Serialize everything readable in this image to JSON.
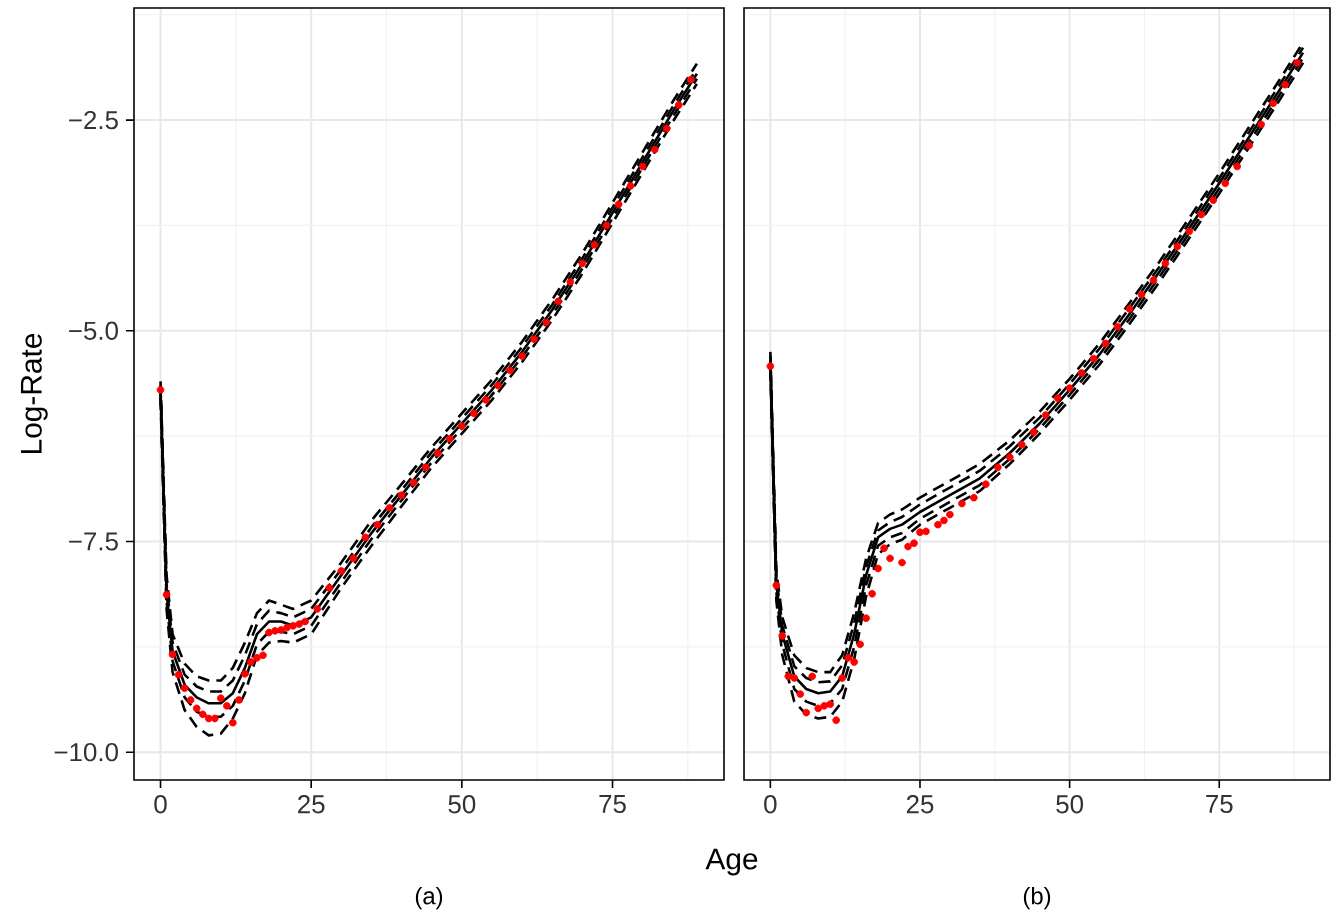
{
  "chart_data": [
    {
      "type": "line",
      "title": "(a)",
      "xlabel": "Age",
      "ylabel": "Log-Rate",
      "xlim": [
        -4.4,
        93.5
      ],
      "ylim": [
        -10.33,
        -1.17
      ],
      "xticks": [
        0,
        25,
        50,
        75
      ],
      "yticks": [
        {
          "value": -10,
          "label": "−10.0"
        },
        {
          "value": -7.5,
          "label": "−7.5"
        },
        {
          "value": -5,
          "label": "−5.0"
        },
        {
          "value": -2.5,
          "label": "−2.5"
        }
      ],
      "grid": true,
      "series": [
        {
          "type": "line",
          "color": "#000000",
          "line_style": "dashed",
          "marker": "none",
          "x": [
            0,
            1,
            2,
            4,
            6,
            8,
            10,
            12,
            14,
            16,
            18,
            20,
            22,
            25,
            30,
            35,
            40,
            45,
            50,
            55,
            60,
            65,
            70,
            75,
            80,
            85,
            89
          ],
          "values": [
            -5.6,
            -7.9,
            -8.6,
            -8.95,
            -9.1,
            -9.15,
            -9.15,
            -9.0,
            -8.7,
            -8.35,
            -8.2,
            -8.25,
            -8.3,
            -8.2,
            -7.75,
            -7.25,
            -6.82,
            -6.38,
            -5.98,
            -5.58,
            -5.13,
            -4.63,
            -4.08,
            -3.48,
            -2.88,
            -2.28,
            -1.83
          ]
        },
        {
          "type": "line",
          "color": "#000000",
          "line_style": "dashed",
          "marker": "none",
          "x": [
            0,
            1,
            2,
            4,
            6,
            8,
            10,
            12,
            14,
            16,
            18,
            20,
            22,
            25,
            30,
            35,
            40,
            45,
            50,
            55,
            60,
            65,
            70,
            75,
            80,
            85,
            89
          ],
          "values": [
            -5.65,
            -8.0,
            -8.7,
            -9.08,
            -9.22,
            -9.28,
            -9.28,
            -9.15,
            -8.85,
            -8.48,
            -8.32,
            -8.35,
            -8.4,
            -8.3,
            -7.83,
            -7.33,
            -6.89,
            -6.44,
            -6.04,
            -5.64,
            -5.19,
            -4.69,
            -4.14,
            -3.54,
            -2.94,
            -2.34,
            -1.89
          ]
        },
        {
          "type": "line",
          "color": "#000000",
          "line_style": "solid",
          "marker": "none",
          "x": [
            0,
            1,
            2,
            4,
            6,
            8,
            10,
            12,
            14,
            16,
            18,
            20,
            22,
            25,
            30,
            35,
            40,
            45,
            50,
            55,
            60,
            65,
            70,
            75,
            80,
            85,
            89
          ],
          "values": [
            -5.7,
            -8.1,
            -8.8,
            -9.2,
            -9.35,
            -9.42,
            -9.42,
            -9.3,
            -9.0,
            -8.6,
            -8.45,
            -8.45,
            -8.5,
            -8.4,
            -7.9,
            -7.4,
            -6.95,
            -6.5,
            -6.1,
            -5.7,
            -5.25,
            -4.75,
            -4.2,
            -3.6,
            -3.0,
            -2.4,
            -1.95
          ]
        },
        {
          "type": "line",
          "color": "#000000",
          "line_style": "dashed",
          "marker": "none",
          "x": [
            0,
            1,
            2,
            4,
            6,
            8,
            10,
            12,
            14,
            16,
            18,
            20,
            22,
            25,
            30,
            35,
            40,
            45,
            50,
            55,
            60,
            65,
            70,
            75,
            80,
            85,
            89
          ],
          "values": [
            -5.75,
            -8.2,
            -8.92,
            -9.35,
            -9.52,
            -9.58,
            -9.58,
            -9.45,
            -9.15,
            -8.72,
            -8.57,
            -8.57,
            -8.6,
            -8.5,
            -7.98,
            -7.47,
            -7.01,
            -6.56,
            -6.16,
            -5.76,
            -5.31,
            -4.81,
            -4.26,
            -3.66,
            -3.06,
            -2.46,
            -2.01
          ]
        },
        {
          "type": "line",
          "color": "#000000",
          "line_style": "dashed",
          "marker": "none",
          "x": [
            0,
            1,
            2,
            4,
            6,
            8,
            10,
            12,
            14,
            16,
            18,
            20,
            22,
            25,
            30,
            35,
            40,
            45,
            50,
            55,
            60,
            65,
            70,
            75,
            80,
            85,
            89
          ],
          "values": [
            -5.8,
            -8.3,
            -9.05,
            -9.5,
            -9.7,
            -9.8,
            -9.78,
            -9.6,
            -9.3,
            -8.85,
            -8.7,
            -8.68,
            -8.7,
            -8.6,
            -8.05,
            -7.55,
            -7.08,
            -6.62,
            -6.22,
            -5.82,
            -5.37,
            -4.87,
            -4.32,
            -3.72,
            -3.12,
            -2.52,
            -2.07
          ]
        },
        {
          "type": "scatter",
          "color": "#ff0000",
          "marker": "circle",
          "x": [
            0,
            1,
            2,
            3,
            4,
            5,
            6,
            7,
            8,
            9,
            10,
            11,
            12,
            13,
            14,
            15,
            16,
            17,
            18,
            19,
            20,
            21,
            22,
            23,
            24,
            26,
            28,
            30,
            32,
            34,
            36,
            38,
            40,
            42,
            44,
            46,
            48,
            50,
            52,
            54,
            56,
            58,
            60,
            62,
            64,
            66,
            68,
            70,
            72,
            74,
            76,
            78,
            80,
            82,
            84,
            86,
            88
          ],
          "values": [
            -5.7,
            -8.13,
            -8.84,
            -9.08,
            -9.24,
            -9.38,
            -9.48,
            -9.55,
            -9.6,
            -9.6,
            -9.36,
            -9.45,
            -9.65,
            -9.38,
            -9.07,
            -8.93,
            -8.88,
            -8.85,
            -8.58,
            -8.56,
            -8.55,
            -8.52,
            -8.5,
            -8.48,
            -8.45,
            -8.3,
            -8.05,
            -7.85,
            -7.7,
            -7.45,
            -7.3,
            -7.1,
            -6.95,
            -6.8,
            -6.62,
            -6.45,
            -6.28,
            -6.13,
            -5.98,
            -5.82,
            -5.65,
            -5.47,
            -5.3,
            -5.1,
            -4.9,
            -4.65,
            -4.42,
            -4.2,
            -3.98,
            -3.75,
            -3.5,
            -3.28,
            -3.05,
            -2.85,
            -2.6,
            -2.32,
            -2.02
          ]
        }
      ]
    },
    {
      "type": "line",
      "title": "(b)",
      "xlim": [
        -4.4,
        93.5
      ],
      "ylim": [
        -10.33,
        -1.17
      ],
      "xticks": [
        0,
        25,
        50,
        75
      ],
      "yticks": [
        -10,
        -7.5,
        -5,
        -2.5
      ],
      "tick_labels": "x",
      "grid": true,
      "series": [
        {
          "type": "line",
          "color": "#000000",
          "line_style": "dashed",
          "marker": "none",
          "x": [
            0,
            1,
            2,
            4,
            6,
            8,
            10,
            12,
            14,
            16,
            18,
            20,
            22,
            25,
            30,
            35,
            40,
            45,
            50,
            55,
            60,
            65,
            70,
            75,
            80,
            85,
            89
          ],
          "values": [
            -5.25,
            -7.85,
            -8.4,
            -8.85,
            -9.0,
            -9.05,
            -9.05,
            -8.85,
            -8.35,
            -7.7,
            -7.28,
            -7.18,
            -7.12,
            -6.98,
            -6.78,
            -6.58,
            -6.3,
            -5.96,
            -5.57,
            -5.15,
            -4.67,
            -4.18,
            -3.66,
            -3.13,
            -2.58,
            -2.03,
            -1.58
          ]
        },
        {
          "type": "line",
          "color": "#000000",
          "line_style": "dashed",
          "marker": "none",
          "x": [
            0,
            1,
            2,
            4,
            6,
            8,
            10,
            12,
            14,
            16,
            18,
            20,
            22,
            25,
            30,
            35,
            40,
            45,
            50,
            55,
            60,
            65,
            70,
            75,
            80,
            85,
            89
          ],
          "values": [
            -5.3,
            -7.92,
            -8.5,
            -8.98,
            -9.12,
            -9.17,
            -9.16,
            -8.97,
            -8.47,
            -7.8,
            -7.37,
            -7.27,
            -7.21,
            -7.06,
            -6.86,
            -6.66,
            -6.37,
            -6.03,
            -5.63,
            -5.21,
            -4.73,
            -4.24,
            -3.72,
            -3.19,
            -2.64,
            -2.09,
            -1.64
          ]
        },
        {
          "type": "line",
          "color": "#000000",
          "line_style": "solid",
          "marker": "none",
          "x": [
            0,
            1,
            2,
            4,
            6,
            8,
            10,
            12,
            14,
            16,
            18,
            20,
            22,
            25,
            30,
            35,
            40,
            45,
            50,
            55,
            60,
            65,
            70,
            75,
            80,
            85,
            89
          ],
          "values": [
            -5.35,
            -8.0,
            -8.6,
            -9.1,
            -9.25,
            -9.3,
            -9.28,
            -9.1,
            -8.6,
            -7.9,
            -7.45,
            -7.35,
            -7.3,
            -7.15,
            -6.95,
            -6.75,
            -6.45,
            -6.1,
            -5.7,
            -5.28,
            -4.8,
            -4.3,
            -3.78,
            -3.25,
            -2.7,
            -2.15,
            -1.7
          ]
        },
        {
          "type": "line",
          "color": "#000000",
          "line_style": "dashed",
          "marker": "none",
          "x": [
            0,
            1,
            2,
            4,
            6,
            8,
            10,
            12,
            14,
            16,
            18,
            20,
            22,
            25,
            30,
            35,
            40,
            45,
            50,
            55,
            60,
            65,
            70,
            75,
            80,
            85,
            89
          ],
          "values": [
            -5.4,
            -8.1,
            -8.72,
            -9.25,
            -9.4,
            -9.45,
            -9.42,
            -9.25,
            -8.75,
            -8.02,
            -7.55,
            -7.45,
            -7.4,
            -7.23,
            -7.03,
            -6.83,
            -6.52,
            -6.16,
            -5.76,
            -5.34,
            -4.86,
            -4.36,
            -3.84,
            -3.31,
            -2.76,
            -2.21,
            -1.76
          ]
        },
        {
          "type": "line",
          "color": "#000000",
          "line_style": "dashed",
          "marker": "none",
          "x": [
            0,
            1,
            2,
            4,
            6,
            8,
            10,
            12,
            14,
            16,
            18,
            20,
            22,
            25,
            30,
            35,
            40,
            45,
            50,
            55,
            60,
            65,
            70,
            75,
            80,
            85,
            89
          ],
          "values": [
            -5.45,
            -8.2,
            -8.85,
            -9.4,
            -9.55,
            -9.6,
            -9.58,
            -9.4,
            -8.9,
            -8.15,
            -7.65,
            -7.53,
            -7.48,
            -7.3,
            -7.1,
            -6.9,
            -6.58,
            -6.22,
            -5.82,
            -5.4,
            -4.92,
            -4.42,
            -3.9,
            -3.37,
            -2.82,
            -2.27,
            -1.82
          ]
        },
        {
          "type": "scatter",
          "color": "#ff0000",
          "marker": "circle",
          "x": [
            0,
            1,
            2,
            3,
            4,
            5,
            6,
            7,
            8,
            9,
            10,
            11,
            12,
            13,
            14,
            15,
            16,
            17,
            18,
            19,
            20,
            22,
            23,
            24,
            25,
            26,
            28,
            29,
            30,
            32,
            34,
            36,
            38,
            40,
            42,
            44,
            46,
            48,
            50,
            52,
            54,
            56,
            58,
            60,
            62,
            64,
            66,
            68,
            70,
            72,
            74,
            76,
            78,
            80,
            82,
            84,
            86,
            88
          ],
          "values": [
            -5.42,
            -8.02,
            -8.62,
            -9.1,
            -9.12,
            -9.31,
            -9.53,
            -9.1,
            -9.48,
            -9.45,
            -9.43,
            -9.62,
            -9.12,
            -8.88,
            -8.93,
            -8.72,
            -8.41,
            -8.12,
            -7.82,
            -7.58,
            -7.7,
            -7.75,
            -7.56,
            -7.52,
            -7.39,
            -7.38,
            -7.3,
            -7.25,
            -7.18,
            -7.05,
            -6.98,
            -6.82,
            -6.62,
            -6.5,
            -6.35,
            -6.2,
            -6.0,
            -5.8,
            -5.68,
            -5.5,
            -5.33,
            -5.15,
            -4.95,
            -4.74,
            -4.57,
            -4.4,
            -4.2,
            -4.0,
            -3.82,
            -3.62,
            -3.45,
            -3.25,
            -3.05,
            -2.8,
            -2.55,
            -2.3,
            -2.08,
            -1.82
          ]
        }
      ]
    }
  ]
}
